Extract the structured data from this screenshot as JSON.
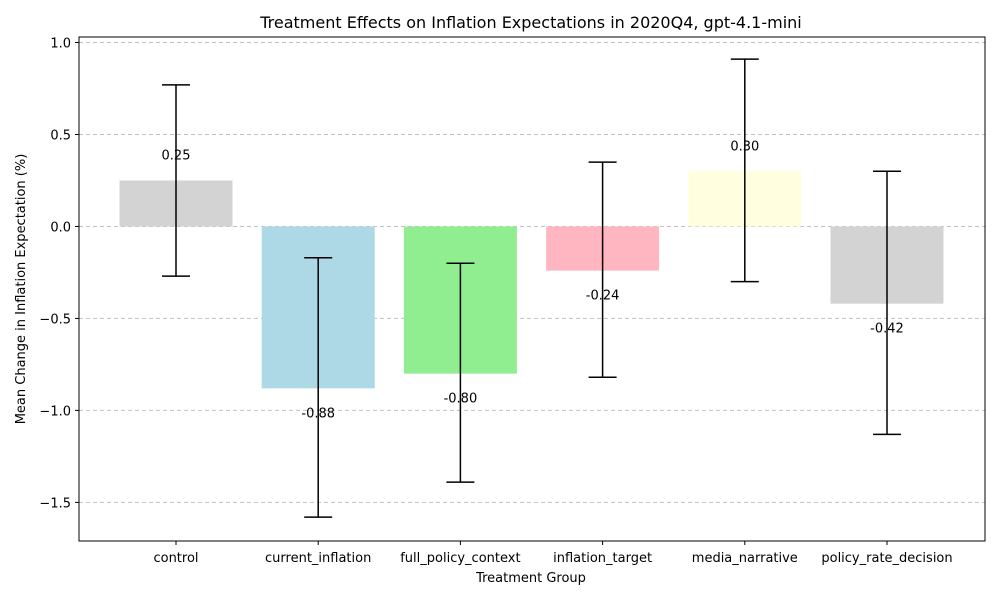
{
  "chart_data": {
    "type": "bar",
    "title": "Treatment Effects on Inflation Expectations in 2020Q4, gpt-4.1-mini",
    "xlabel": "Treatment Group",
    "ylabel": "Mean Change in Inflation Expectation (%)",
    "categories": [
      "control",
      "current_inflation",
      "full_policy_context",
      "inflation_target",
      "media_narrative",
      "policy_rate_decision"
    ],
    "values": [
      0.25,
      -0.88,
      -0.8,
      -0.24,
      0.3,
      -0.42
    ],
    "value_labels": [
      "0.25",
      "-0.88",
      "-0.80",
      "-0.24",
      "0.30",
      "-0.42"
    ],
    "error_low": [
      -0.27,
      -1.58,
      -1.39,
      -0.82,
      -0.3,
      -1.13
    ],
    "error_high": [
      0.77,
      -0.17,
      -0.2,
      0.35,
      0.91,
      0.3
    ],
    "colors": [
      "#d3d3d3",
      "#add8e6",
      "#90ee90",
      "#ffb6c1",
      "#ffffe0",
      "#d3d3d3"
    ],
    "ylim": [
      -1.71,
      1.03
    ],
    "yticks": [
      1.0,
      0.5,
      0.0,
      -0.5,
      -1.0,
      -1.5
    ],
    "ytick_labels": [
      "1.0",
      "0.5",
      "0.0",
      "−0.5",
      "−1.0",
      "−1.5"
    ],
    "grid": "y-dashed"
  }
}
